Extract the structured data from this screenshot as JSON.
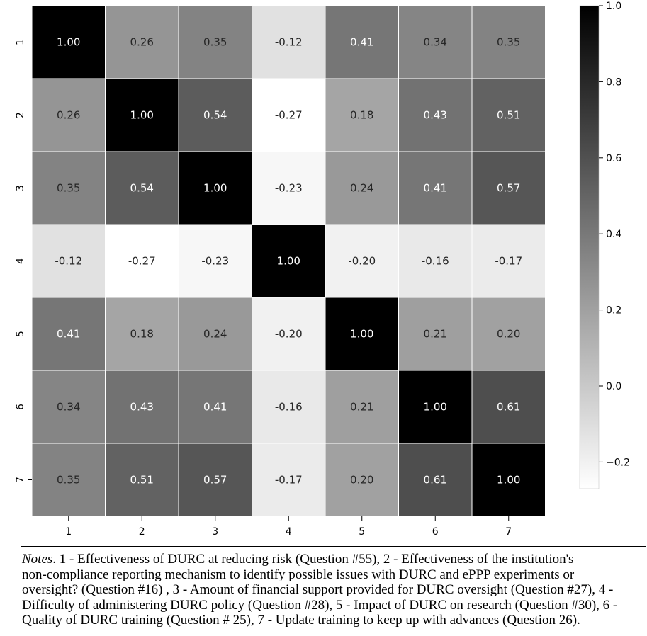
{
  "chart_data": {
    "type": "heatmap",
    "row_labels": [
      "1",
      "2",
      "3",
      "4",
      "5",
      "6",
      "7"
    ],
    "col_labels": [
      "1",
      "2",
      "3",
      "4",
      "5",
      "6",
      "7"
    ],
    "values": [
      [
        1.0,
        0.26,
        0.35,
        -0.12,
        0.41,
        0.34,
        0.35
      ],
      [
        0.26,
        1.0,
        0.54,
        -0.27,
        0.18,
        0.43,
        0.51
      ],
      [
        0.35,
        0.54,
        1.0,
        -0.23,
        0.24,
        0.41,
        0.57
      ],
      [
        -0.12,
        -0.27,
        -0.23,
        1.0,
        -0.2,
        -0.16,
        -0.17
      ],
      [
        0.41,
        0.18,
        0.24,
        -0.2,
        1.0,
        0.21,
        0.2
      ],
      [
        0.34,
        0.43,
        0.41,
        -0.16,
        0.21,
        1.0,
        0.61
      ],
      [
        0.35,
        0.51,
        0.57,
        -0.17,
        0.2,
        0.61,
        1.0
      ]
    ],
    "cell_labels": [
      [
        "1.00",
        "0.26",
        "0.35",
        "-0.12",
        "0.41",
        "0.34",
        "0.35"
      ],
      [
        "0.26",
        "1.00",
        "0.54",
        "-0.27",
        "0.18",
        "0.43",
        "0.51"
      ],
      [
        "0.35",
        "0.54",
        "1.00",
        "-0.23",
        "0.24",
        "0.41",
        "0.57"
      ],
      [
        "-0.12",
        "-0.27",
        "-0.23",
        "1.00",
        "-0.20",
        "-0.16",
        "-0.17"
      ],
      [
        "0.41",
        "0.18",
        "0.24",
        "-0.20",
        "1.00",
        "0.21",
        "0.20"
      ],
      [
        "0.34",
        "0.43",
        "0.41",
        "-0.16",
        "0.21",
        "1.00",
        "0.61"
      ],
      [
        "0.35",
        "0.51",
        "0.57",
        "-0.17",
        "0.20",
        "0.61",
        "1.00"
      ]
    ],
    "colorbar": {
      "min": -0.27,
      "max": 1.0,
      "ticks": [
        1.0,
        0.8,
        0.6,
        0.4,
        0.2,
        0.0,
        -0.2
      ],
      "tick_labels": [
        "1.0",
        "0.8",
        "0.6",
        "0.4",
        "0.2",
        "0.0",
        "−0.2"
      ],
      "colormap": "greys"
    },
    "title": "",
    "xlabel": "",
    "ylabel": ""
  },
  "notes": {
    "label": "Notes",
    "lines": [
      ". 1 - Effectiveness of DURC at reducing risk (Question #55), 2 - Effectiveness of the institution's",
      "non-compliance reporting mechanism to identify possible issues with DURC and ePPP experiments or",
      "oversight? (Question #16) , 3 - Amount of financial support provided for DURC oversight (Question #27), 4 -",
      "Difficulty of administering DURC policy (Question #28), 5 - Impact of DURC on research (Question #30), 6 -",
      "Quality of DURC training (Question # 25), 7 - Update training to keep up with advances (Question 26)."
    ]
  }
}
